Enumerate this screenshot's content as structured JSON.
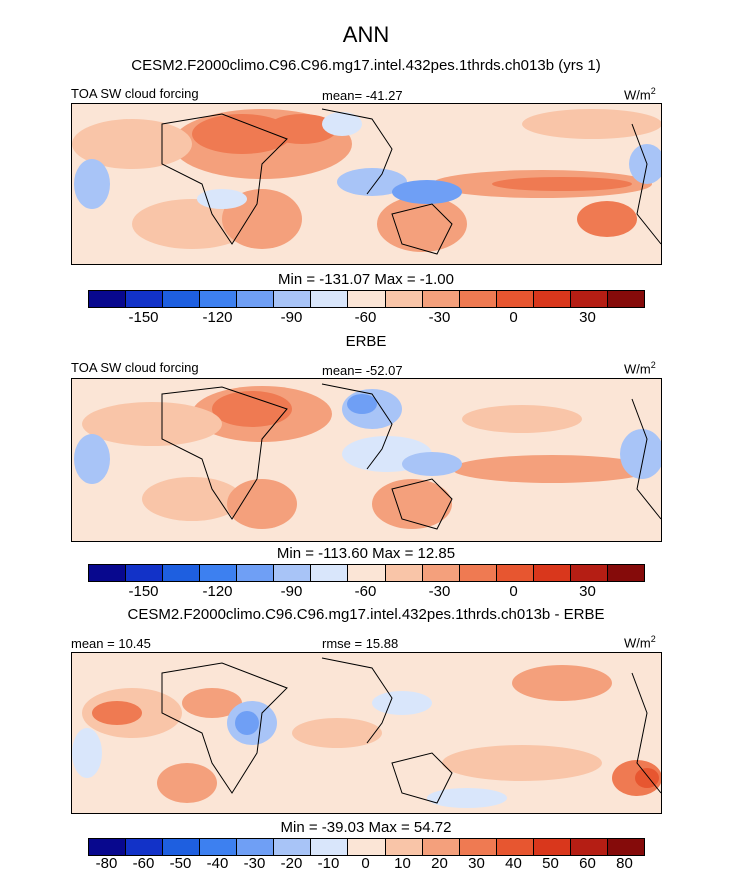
{
  "figure": {
    "title": "ANN",
    "colors": [
      "#08088e",
      "#1232c8",
      "#1e5fe0",
      "#3d80f0",
      "#6f9ff5",
      "#a8c4f7",
      "#d9e6fb",
      "#fbe5d6",
      "#f9c5a8",
      "#f4a07c",
      "#ef7a52",
      "#e75630",
      "#d9371c",
      "#b51e14",
      "#850b0a"
    ]
  },
  "chart_data": [
    {
      "type": "heatmap",
      "case_title": "CESM2.F2000climo.C96.C96.mg17.intel.432pes.1thrds.ch013b (yrs 1)",
      "field_label": "TOA SW cloud forcing",
      "mean_text": "mean= -41.27",
      "units": "W/m",
      "units_sup": "2",
      "minmax_text": "Min = -131.07 Max =  -1.00",
      "min": -131.07,
      "max": -1.0,
      "mean": -41.27,
      "colorbar_ticks": [
        "-150",
        "-120",
        "-90",
        "-60",
        "-30",
        "0",
        "30"
      ]
    },
    {
      "type": "heatmap",
      "case_title": "ERBE",
      "field_label": "TOA SW cloud forcing",
      "mean_text": "mean= -52.07",
      "units": "W/m",
      "units_sup": "2",
      "minmax_text": "Min = -113.60 Max =  12.85",
      "min": -113.6,
      "max": 12.85,
      "mean": -52.07,
      "colorbar_ticks": [
        "-150",
        "-120",
        "-90",
        "-60",
        "-30",
        "0",
        "30"
      ]
    },
    {
      "type": "heatmap",
      "case_title": "CESM2.F2000climo.C96.C96.mg17.intel.432pes.1thrds.ch013b - ERBE",
      "field_label": "",
      "mean_text": "mean =  10.45",
      "rmse_text": "rmse =  15.88",
      "units": "W/m",
      "units_sup": "2",
      "minmax_text": "Min = -39.03 Max =  54.72",
      "min": -39.03,
      "max": 54.72,
      "mean": 10.45,
      "rmse": 15.88,
      "colorbar_ticks": [
        "-80",
        "-60",
        "-50",
        "-40",
        "-30",
        "-20",
        "-10",
        "0",
        "10",
        "20",
        "30",
        "40",
        "50",
        "60",
        "80"
      ]
    }
  ]
}
